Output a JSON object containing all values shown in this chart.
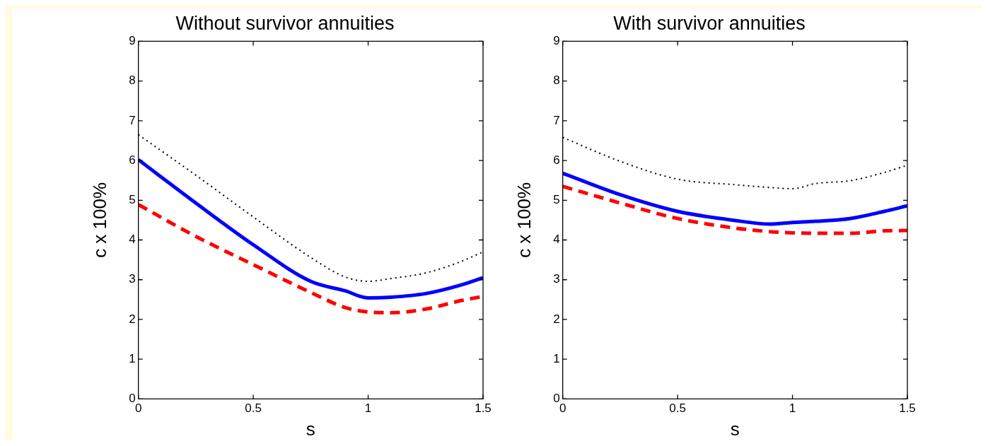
{
  "chart_data": [
    {
      "type": "line",
      "title": "Without survivor annuities",
      "xlabel": "s",
      "ylabel": "c x 100%",
      "x": [
        0,
        0.25,
        0.5,
        0.75,
        0.9,
        1.0,
        1.1,
        1.25,
        1.4,
        1.5
      ],
      "xlim": [
        0,
        1.5
      ],
      "xticks": [
        0,
        0.5,
        1,
        1.5
      ],
      "ylim": [
        0,
        9
      ],
      "yticks": [
        0,
        1,
        2,
        3,
        4,
        5,
        6,
        7,
        8,
        9
      ],
      "grid": false,
      "legend": false,
      "series": [
        {
          "color": "#000000",
          "line_style": "dotted",
          "values": [
            6.65,
            5.63,
            4.58,
            3.56,
            3.07,
            2.96,
            3.03,
            3.17,
            3.45,
            3.7
          ]
        },
        {
          "color": "#0000ff",
          "line_style": "solid",
          "values": [
            6.02,
            4.93,
            3.88,
            2.96,
            2.72,
            2.54,
            2.56,
            2.65,
            2.86,
            3.05
          ]
        },
        {
          "color": "#ff0000",
          "line_style": "dashed",
          "values": [
            4.89,
            4.09,
            3.38,
            2.68,
            2.3,
            2.19,
            2.17,
            2.26,
            2.47,
            2.58
          ]
        }
      ]
    },
    {
      "type": "line",
      "title": "With survivor annuities",
      "xlabel": "s",
      "ylabel": "c x 100%",
      "x": [
        0,
        0.25,
        0.5,
        0.75,
        0.9,
        1.0,
        1.1,
        1.25,
        1.4,
        1.5
      ],
      "xlim": [
        0,
        1.5
      ],
      "xticks": [
        0,
        0.5,
        1,
        1.5
      ],
      "ylim": [
        0,
        9
      ],
      "yticks": [
        0,
        1,
        2,
        3,
        4,
        5,
        6,
        7,
        8,
        9
      ],
      "grid": false,
      "legend": false,
      "series": [
        {
          "color": "#000000",
          "line_style": "dotted",
          "values": [
            6.58,
            5.98,
            5.53,
            5.39,
            5.32,
            5.29,
            5.42,
            5.49,
            5.7,
            5.88
          ]
        },
        {
          "color": "#0000ff",
          "line_style": "solid",
          "values": [
            5.68,
            5.14,
            4.72,
            4.49,
            4.4,
            4.44,
            4.47,
            4.54,
            4.72,
            4.86
          ]
        },
        {
          "color": "#ff0000",
          "line_style": "dashed",
          "values": [
            5.35,
            4.93,
            4.54,
            4.3,
            4.21,
            4.18,
            4.17,
            4.17,
            4.23,
            4.24
          ]
        }
      ]
    }
  ]
}
